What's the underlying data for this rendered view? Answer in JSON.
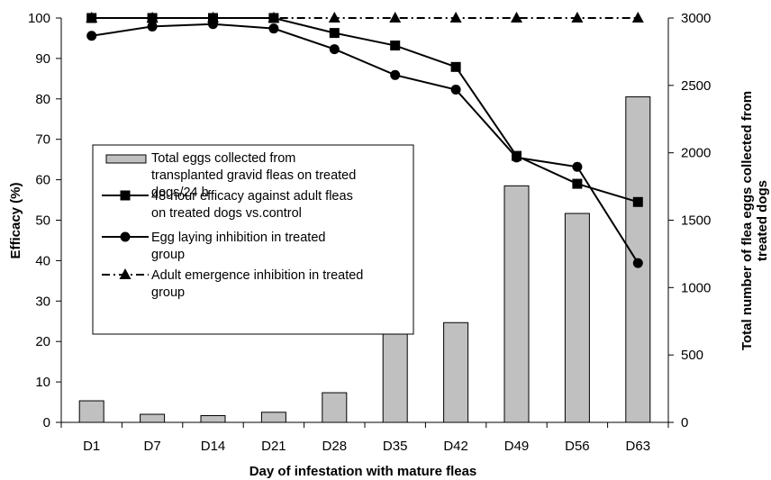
{
  "chart_data": {
    "type": "bar+line",
    "title": "",
    "categories": [
      "D1",
      "D7",
      "D14",
      "D21",
      "D28",
      "D35",
      "D42",
      "D49",
      "D56",
      "D63"
    ],
    "xlabel": "Day of infestation with mature fleas",
    "ylabel_left": "Efficacy (%)",
    "ylabel_right": "Total number of flea eggs collected from treated dogs",
    "ylim_left": [
      0,
      100
    ],
    "yticks_left": [
      0,
      10,
      20,
      30,
      40,
      50,
      60,
      70,
      80,
      90,
      100
    ],
    "ylim_right": [
      0,
      3000
    ],
    "yticks_right": [
      0,
      500,
      1000,
      1500,
      2000,
      2500,
      3000
    ],
    "grid": false,
    "legend_position": "center-left",
    "bars": {
      "name": "Total eggs collected from transplanted gravid fleas on treated dogs/24 h",
      "axis": "right",
      "color": "#c0c0c0",
      "values": [
        160,
        60,
        50,
        75,
        220,
        695,
        740,
        1755,
        1550,
        2415
      ]
    },
    "series": [
      {
        "name": "48-hour efficacy against adult fleas on treated dogs vs.control",
        "axis": "left",
        "marker": "square",
        "line": "solid",
        "values": [
          100,
          100,
          100,
          100,
          96.3,
          93.2,
          87.9,
          65.9,
          59,
          54.5
        ]
      },
      {
        "name": "Egg laying inhibition in treated group",
        "axis": "left",
        "marker": "circle",
        "line": "solid",
        "values": [
          95.6,
          97.9,
          98.5,
          97.4,
          92.3,
          85.9,
          82.3,
          65.5,
          63.2,
          39.4
        ]
      },
      {
        "name": "Adult emergence inhibition in treated group",
        "axis": "left",
        "marker": "triangle",
        "line": "dash-dot",
        "values": [
          100,
          100,
          100,
          100,
          100,
          100,
          100,
          100,
          100,
          100
        ]
      }
    ]
  }
}
